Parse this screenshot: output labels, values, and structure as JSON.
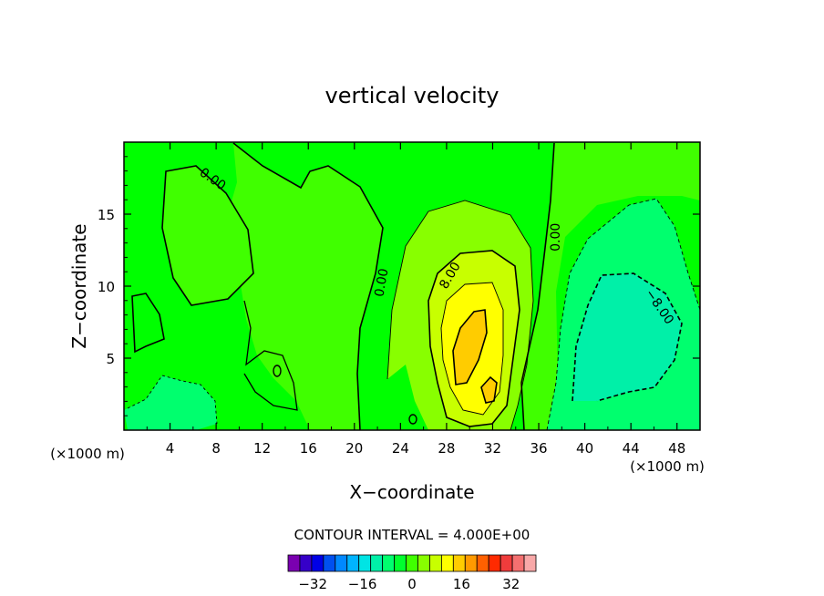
{
  "chart_data": {
    "type": "contour",
    "title": "vertical velocity",
    "xlabel": "X−coordinate",
    "ylabel": "Z−coordinate",
    "x_unit_label": "(×1000 m)",
    "xlim": [
      0,
      50
    ],
    "ylim": [
      0,
      20
    ],
    "x_ticks": [
      4,
      8,
      12,
      16,
      20,
      24,
      28,
      32,
      36,
      40,
      44,
      48
    ],
    "y_ticks": [
      5,
      10,
      15
    ],
    "contour_interval_text": "CONTOUR INTERVAL = 4.000E+00",
    "contour_labels": [
      {
        "text": "0.00",
        "x": 7.5,
        "y": 17.2
      },
      {
        "text": "0.00",
        "x": 22.7,
        "y": 10.2
      },
      {
        "text": "0.00",
        "x": 37.8,
        "y": 13.4
      },
      {
        "text": "8.00",
        "x": 28.6,
        "y": 10.6
      },
      {
        "text": "−8.00",
        "x": 46.2,
        "y": 8.4
      }
    ],
    "features": [
      {
        "kind": "max",
        "x": 29.5,
        "y": 6.5,
        "value": 16
      },
      {
        "kind": "min",
        "x": 44.0,
        "y": 8.0,
        "value": -12
      }
    ],
    "colorbar": {
      "ticks": [
        "−32",
        "−16",
        "0",
        "16",
        "32"
      ],
      "tick_values": [
        -32,
        -16,
        0,
        16,
        32
      ],
      "range": [
        -40,
        40
      ],
      "colors": [
        "#7a00b0",
        "#3600c8",
        "#0000e6",
        "#0050f0",
        "#0088ff",
        "#00b4ff",
        "#00e4e4",
        "#00f0a8",
        "#00ff6e",
        "#00ff2e",
        "#40ff00",
        "#88ff00",
        "#c8ff00",
        "#ffff00",
        "#ffcc00",
        "#ff9a00",
        "#ff6000",
        "#ff2a00",
        "#f03c3c",
        "#f47070",
        "#f8a8a8"
      ]
    },
    "background_color": "#00ff00"
  }
}
